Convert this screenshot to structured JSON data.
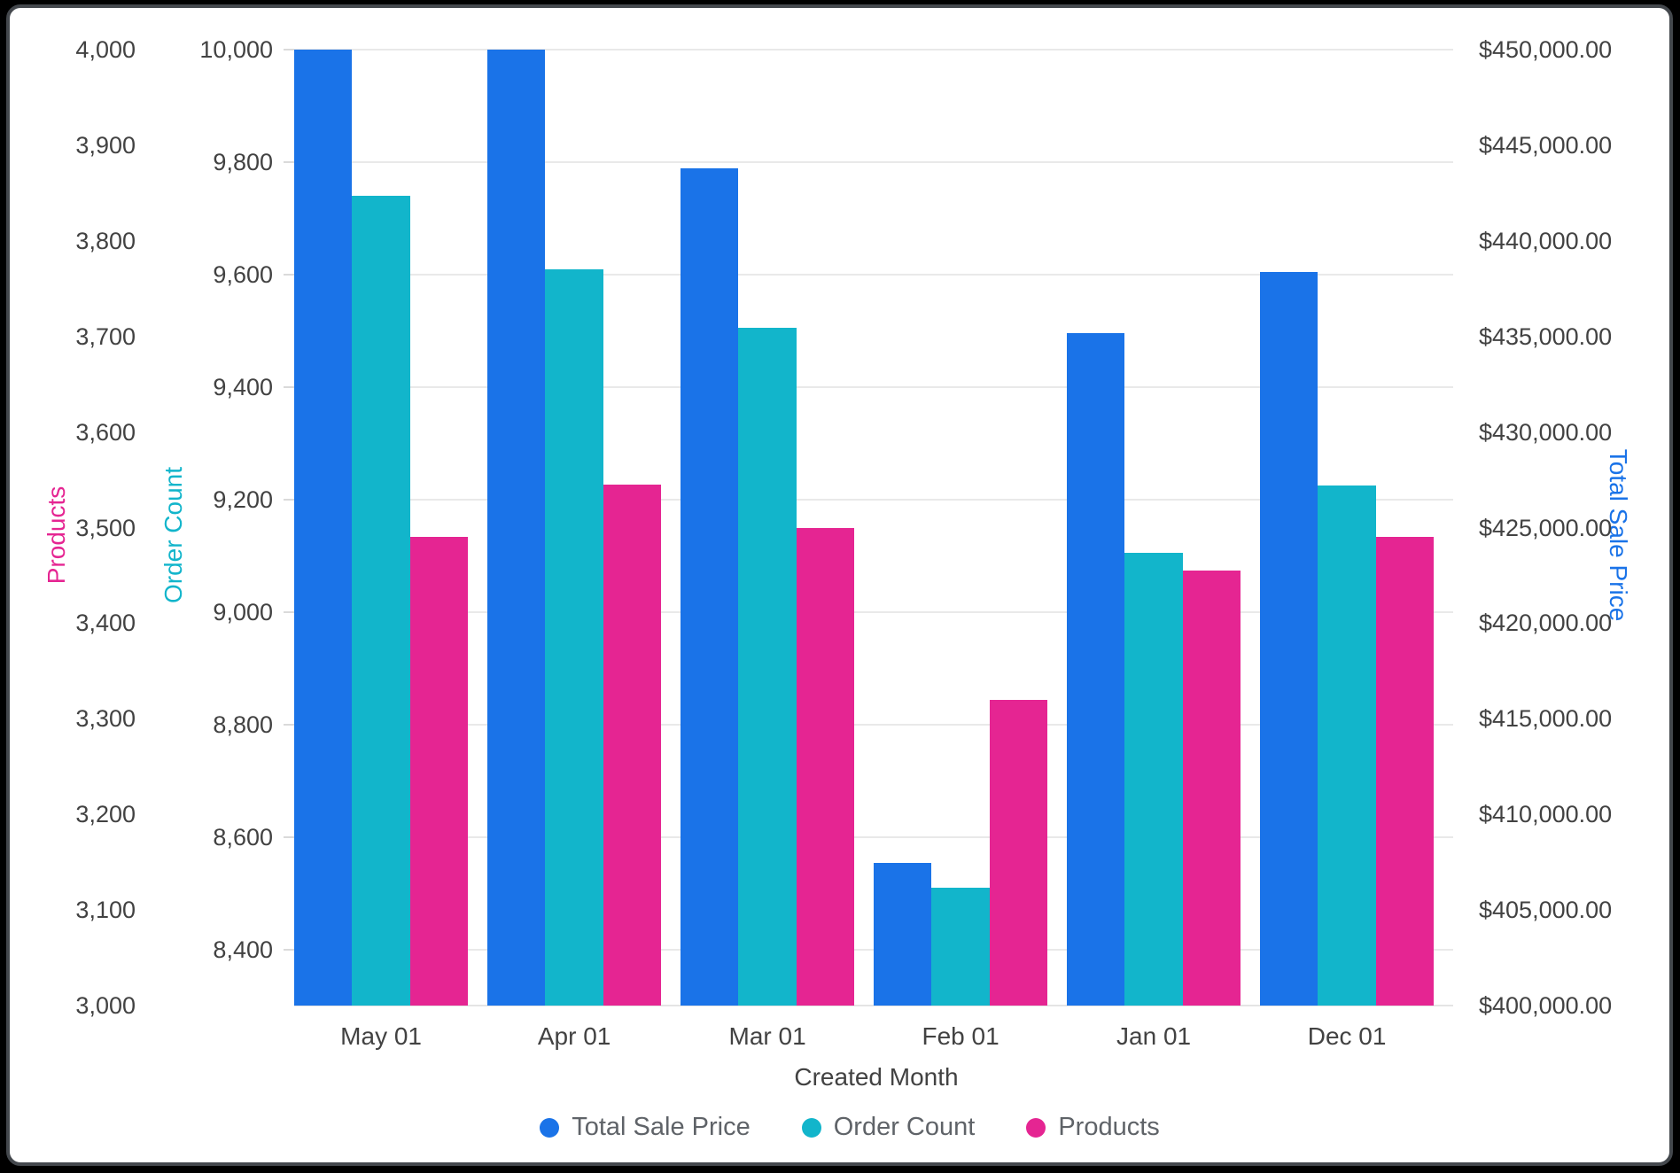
{
  "chart_data": {
    "type": "bar",
    "title": "",
    "xlabel": "Created Month",
    "grid": true,
    "legend_position": "bottom",
    "categories": [
      "May 01",
      "Apr 01",
      "Mar 01",
      "Feb 01",
      "Jan 01",
      "Dec 01"
    ],
    "series": [
      {
        "name": "Total Sale Price",
        "axis": "price",
        "color": "#1a73e8",
        "values": [
          450000,
          450000,
          443800,
          407450,
          435150,
          438350
        ]
      },
      {
        "name": "Order Count",
        "axis": "orders",
        "color": "#12b5cb",
        "values": [
          9740,
          9610,
          9505,
          8510,
          9105,
          9225
        ]
      },
      {
        "name": "Products",
        "axis": "products",
        "color": "#e52592",
        "values": [
          3490,
          3545,
          3500,
          3320,
          3455,
          3490
        ]
      }
    ],
    "axes": {
      "products": {
        "title": "Products",
        "color": "#e52592",
        "side": "outer-left",
        "min": 3000,
        "max": 4000,
        "ticks": [
          {
            "label": "3,000",
            "v": 3000
          },
          {
            "label": "3,100",
            "v": 3100
          },
          {
            "label": "3,200",
            "v": 3200
          },
          {
            "label": "3,300",
            "v": 3300
          },
          {
            "label": "3,400",
            "v": 3400
          },
          {
            "label": "3,500",
            "v": 3500
          },
          {
            "label": "3,600",
            "v": 3600
          },
          {
            "label": "3,700",
            "v": 3700
          },
          {
            "label": "3,800",
            "v": 3800
          },
          {
            "label": "3,900",
            "v": 3900
          },
          {
            "label": "4,000",
            "v": 4000
          }
        ]
      },
      "orders": {
        "title": "Order Count",
        "color": "#12b5cb",
        "side": "inner-left",
        "min": 8300,
        "max": 10000,
        "ticks": [
          {
            "label": "8,400",
            "v": 8400
          },
          {
            "label": "8,600",
            "v": 8600
          },
          {
            "label": "8,800",
            "v": 8800
          },
          {
            "label": "9,000",
            "v": 9000
          },
          {
            "label": "9,200",
            "v": 9200
          },
          {
            "label": "9,400",
            "v": 9400
          },
          {
            "label": "9,600",
            "v": 9600
          },
          {
            "label": "9,800",
            "v": 9800
          },
          {
            "label": "10,000",
            "v": 10000
          }
        ]
      },
      "price": {
        "title": "Total Sale Price",
        "color": "#1a73e8",
        "side": "right",
        "min": 400000,
        "max": 450000,
        "ticks": [
          {
            "label": "$400,000.00",
            "v": 400000
          },
          {
            "label": "$405,000.00",
            "v": 405000
          },
          {
            "label": "$410,000.00",
            "v": 410000
          },
          {
            "label": "$415,000.00",
            "v": 415000
          },
          {
            "label": "$420,000.00",
            "v": 420000
          },
          {
            "label": "$425,000.00",
            "v": 425000
          },
          {
            "label": "$430,000.00",
            "v": 430000
          },
          {
            "label": "$435,000.00",
            "v": 435000
          },
          {
            "label": "$440,000.00",
            "v": 440000
          },
          {
            "label": "$445,000.00",
            "v": 445000
          },
          {
            "label": "$450,000.00",
            "v": 450000
          }
        ]
      }
    },
    "legend": [
      "Total Sale Price",
      "Order Count",
      "Products"
    ]
  }
}
